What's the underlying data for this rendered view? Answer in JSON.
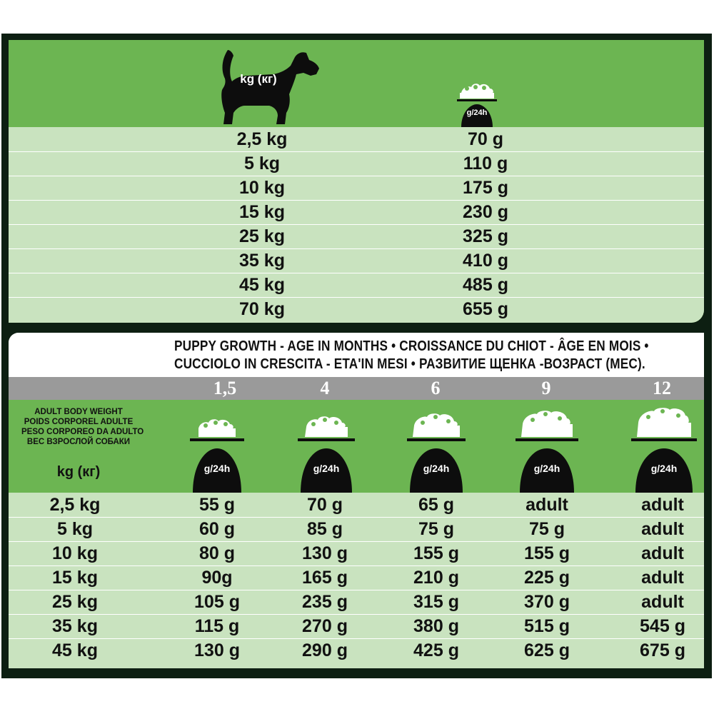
{
  "top_table": {
    "weight_unit": "kg (кг)",
    "scale_label": "g/24h",
    "rows": [
      {
        "weight": "2,5 kg",
        "amount": "70 g"
      },
      {
        "weight": "5 kg",
        "amount": "110 g"
      },
      {
        "weight": "10 kg",
        "amount": "175 g"
      },
      {
        "weight": "15 kg",
        "amount": "230 g"
      },
      {
        "weight": "25 kg",
        "amount": "325 g"
      },
      {
        "weight": "35 kg",
        "amount": "410 g"
      },
      {
        "weight": "45 kg",
        "amount": "485 g"
      },
      {
        "weight": "70 kg",
        "amount": "655 g"
      }
    ]
  },
  "bottom_table": {
    "header_line1": "PUPPY GROWTH - AGE IN MONTHS • CROISSANCE DU CHIOT - ÂGE EN MOIS •",
    "header_line2": "CUCCIOLO IN CRESCITA - ETA'IN MESI • РАЗВИТИЕ ЩЕНКА -ВОЗРАСТ (МЕС).",
    "ages": [
      "1,5",
      "4",
      "6",
      "9",
      "12"
    ],
    "weight_label": [
      "ADULT BODY WEIGHT",
      "POIDS CORPOREL ADULTE",
      "PESO CORPOREO DA ADULTO",
      "ВЕС ВЗРОСЛОЙ СОБАКИ"
    ],
    "weight_unit": "kg (кг)",
    "scale_label": "g/24h",
    "rows": [
      {
        "weight": "2,5 kg",
        "values": [
          "55 g",
          "70 g",
          "65 g",
          "adult",
          "adult"
        ]
      },
      {
        "weight": "5 kg",
        "values": [
          "60 g",
          "85 g",
          "75 g",
          "75 g",
          "adult"
        ]
      },
      {
        "weight": "10 kg",
        "values": [
          "80 g",
          "130 g",
          "155 g",
          "155 g",
          "adult"
        ]
      },
      {
        "weight": "15 kg",
        "values": [
          "90g",
          "165 g",
          "210 g",
          "225 g",
          "adult"
        ]
      },
      {
        "weight": "25 kg",
        "values": [
          "105 g",
          "235 g",
          "315 g",
          "370 g",
          "adult"
        ]
      },
      {
        "weight": "35 kg",
        "values": [
          "115 g",
          "270 g",
          "380 g",
          "515 g",
          "545 g"
        ]
      },
      {
        "weight": "45 kg",
        "values": [
          "130 g",
          "290 g",
          "425 g",
          "625 g",
          "675 g"
        ]
      }
    ]
  },
  "colors": {
    "frame": "#0d1f12",
    "green": "#6cb552",
    "light_green": "#c9e3bf",
    "grey_band": "#9a9a9a"
  }
}
